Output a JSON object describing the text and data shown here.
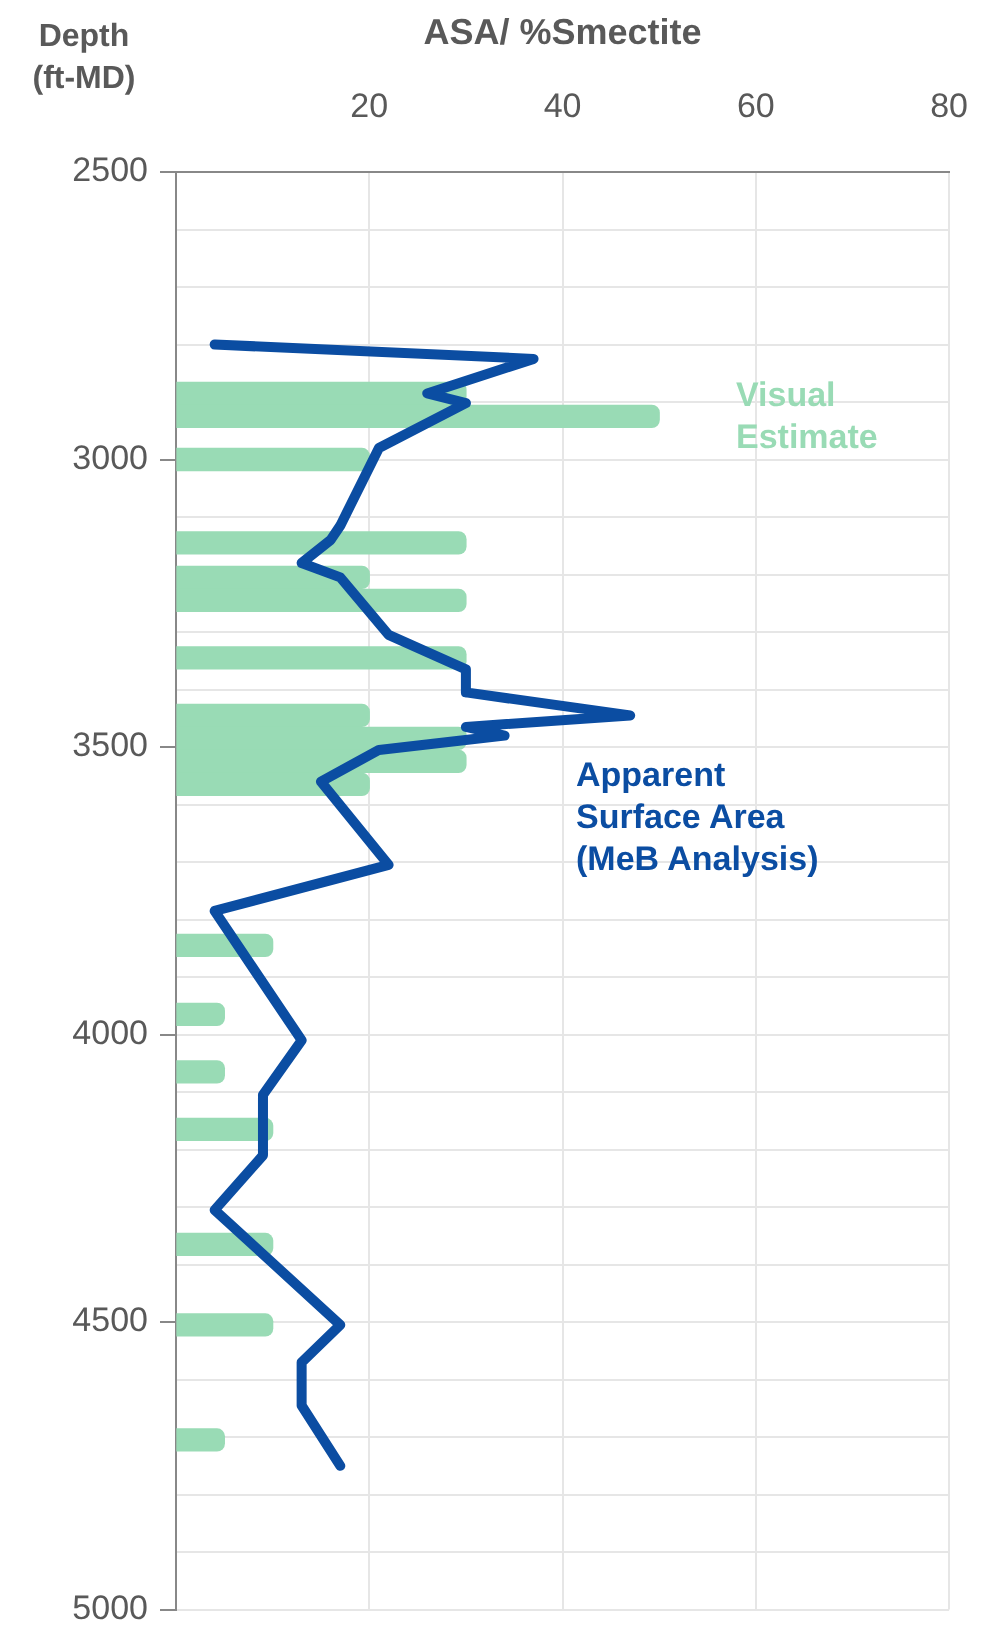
{
  "chart_data": {
    "type": "bar",
    "orientation": "horizontal",
    "xlabel": "ASA/ %Smectite",
    "ylabel": "Depth (ft-MD)",
    "xlim": [
      0,
      80
    ],
    "xticks": [
      {
        "value": 0,
        "label": null
      },
      20,
      40,
      60,
      80
    ],
    "ylim": [
      5000,
      2500
    ],
    "yticks": [
      2500,
      {
        "value": 2600,
        "label": null
      },
      {
        "value": 2700,
        "label": null
      },
      {
        "value": 2800,
        "label": null
      },
      {
        "value": 2900,
        "label": null
      },
      3000,
      {
        "value": 3100,
        "label": null
      },
      {
        "value": 3200,
        "label": null
      },
      {
        "value": 3300,
        "label": null
      },
      {
        "value": 3400,
        "label": null
      },
      3500,
      {
        "value": 3600,
        "label": null
      },
      {
        "value": 3700,
        "label": null
      },
      {
        "value": 3800,
        "label": null
      },
      {
        "value": 3900,
        "label": null
      },
      4000,
      {
        "value": 4100,
        "label": null
      },
      {
        "value": 4200,
        "label": null
      },
      {
        "value": 4300,
        "label": null
      },
      {
        "value": 4400,
        "label": null
      },
      4500,
      {
        "value": 4600,
        "label": null
      },
      {
        "value": 4700,
        "label": null
      },
      {
        "value": 4800,
        "label": null
      },
      {
        "value": 4900,
        "label": null
      },
      5000
    ],
    "grid": true,
    "series": [
      {
        "name": "Visual Estimate",
        "color": "#99dbb5",
        "x": [
          2885,
          2925,
          3000,
          3145,
          3205,
          3245,
          3345,
          3445,
          3485,
          3525,
          3565,
          3845,
          3965,
          4065,
          4165,
          4365,
          4505,
          4705
        ],
        "values": [
          30,
          50,
          20,
          30,
          20,
          30,
          30,
          20,
          30,
          30,
          20,
          10,
          5,
          5,
          10,
          10,
          10,
          5
        ]
      },
      {
        "type": "line",
        "name": "Apparent Surface Area (MeB Analysis)",
        "color": "#0b4da2",
        "x": [
          2800,
          2825,
          2885,
          2902,
          2980,
          3115,
          3140,
          3180,
          3205,
          3305,
          3365,
          3405,
          3445,
          3465,
          3480,
          3505,
          3560,
          3705,
          3785,
          4010,
          4105,
          4210,
          4305,
          4505,
          4570,
          4645,
          4750
        ],
        "values": [
          4,
          37,
          26,
          30,
          21,
          17,
          16,
          13,
          17,
          22,
          30,
          30,
          47,
          30,
          34,
          21,
          15,
          22,
          4,
          13,
          9,
          9,
          4,
          17,
          13,
          13,
          17
        ]
      }
    ]
  }
}
